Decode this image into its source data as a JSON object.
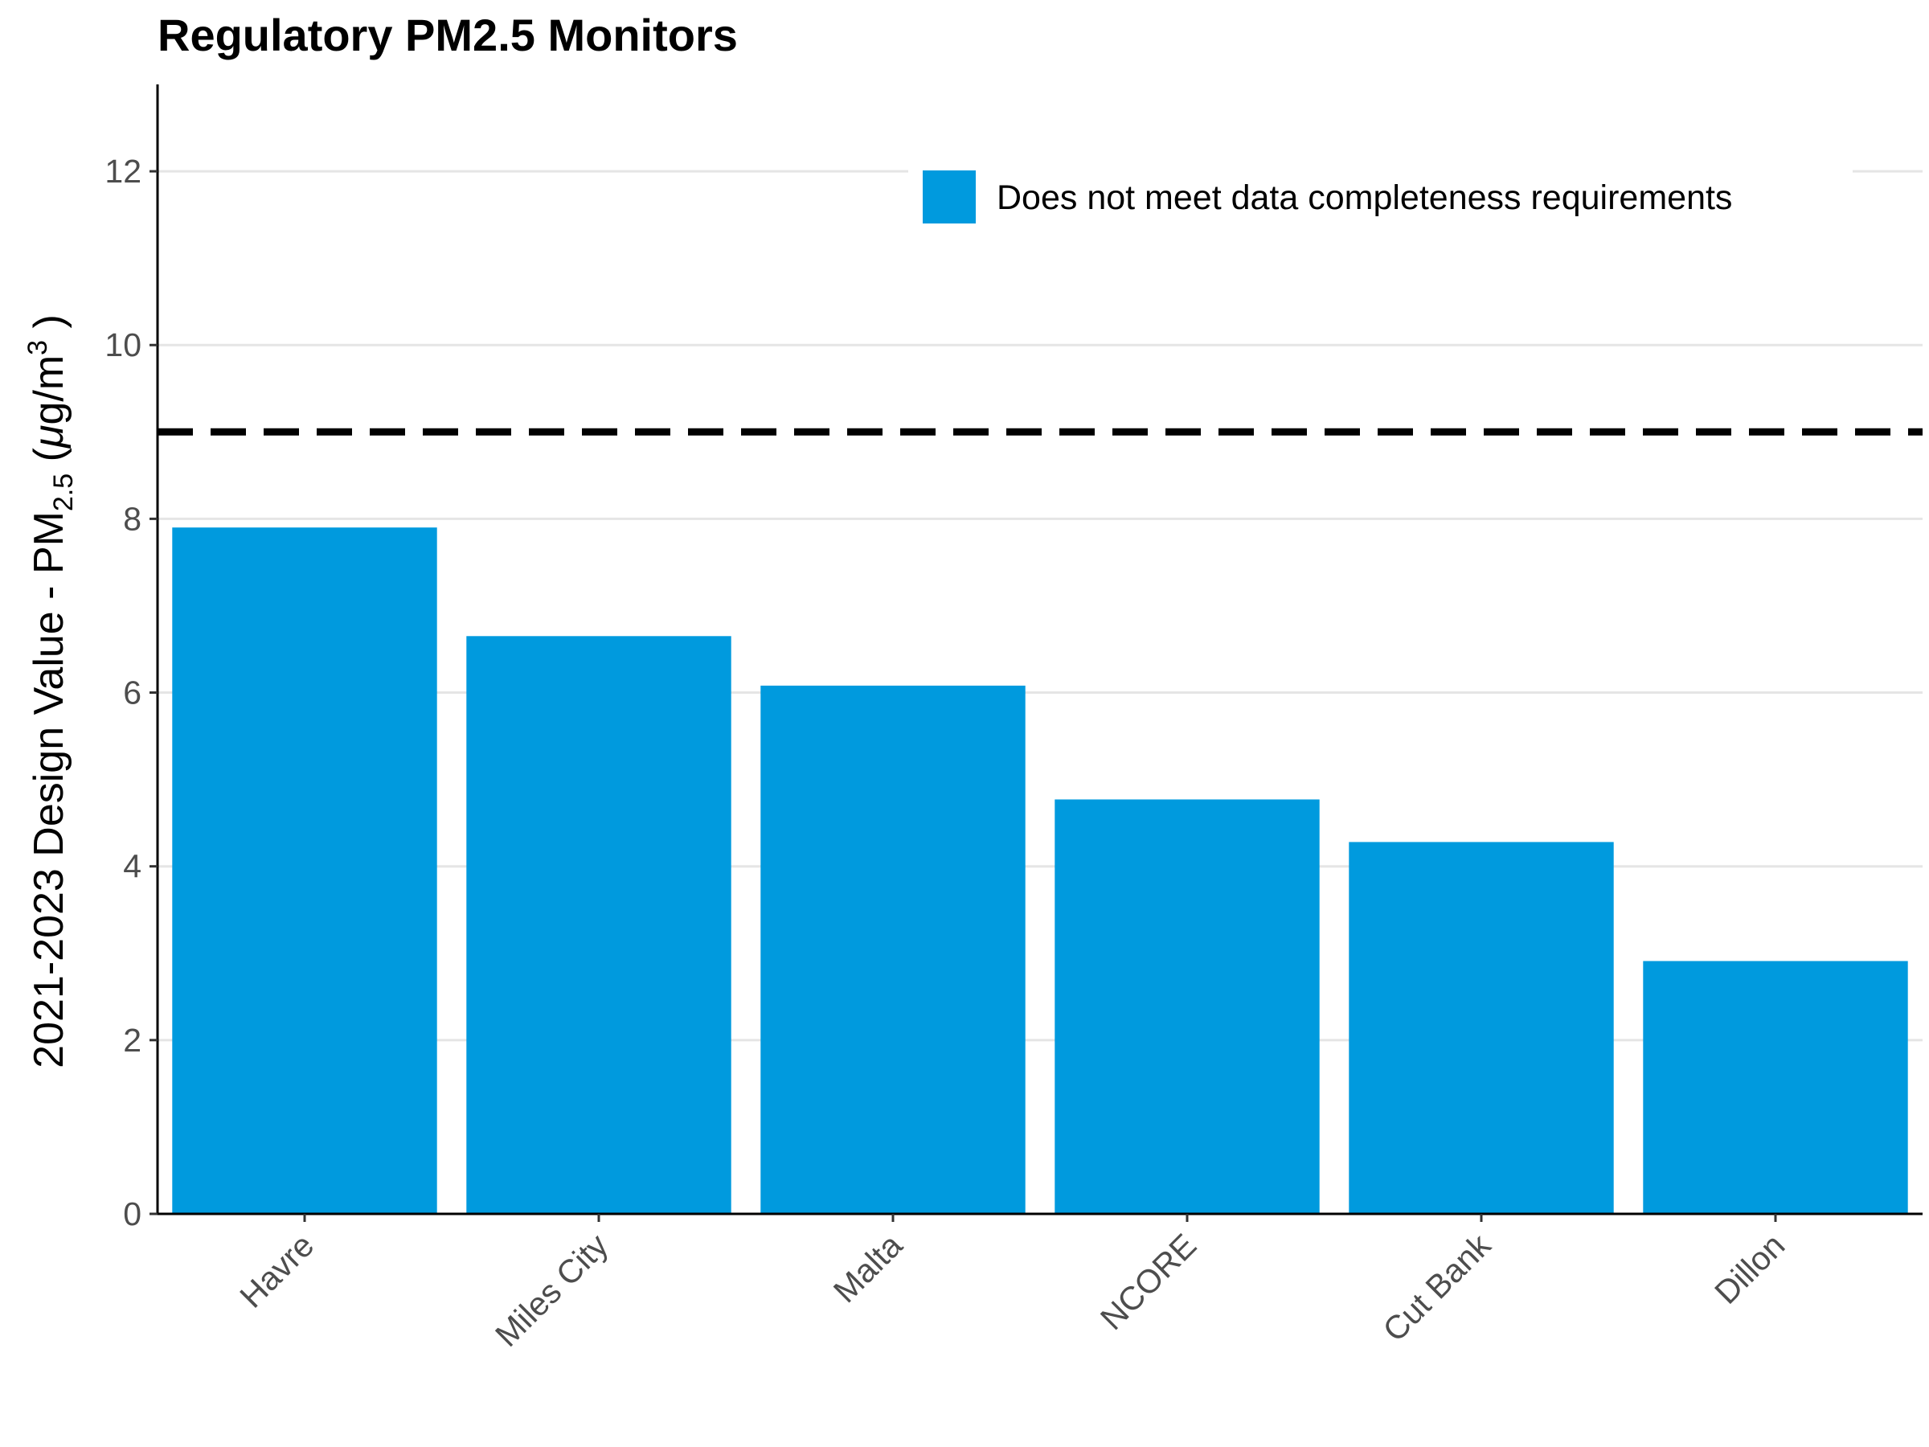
{
  "chart_data": {
    "type": "bar",
    "title": "Regulatory PM2.5 Monitors",
    "ylabel": {
      "prefix": "2021-2023 Design Value - PM",
      "subscript": "2.5",
      "units_open": " (",
      "mu": "μ",
      "units_mid": "g/m",
      "superscript": "3",
      "units_close": " )"
    },
    "categories": [
      "Havre",
      "Miles City",
      "Malta",
      "NCORE",
      "Cut Bank",
      "Dillon"
    ],
    "values": [
      7.9,
      6.65,
      6.08,
      4.77,
      4.28,
      2.91
    ],
    "ylim": [
      0,
      13
    ],
    "yticks": [
      0,
      2,
      4,
      6,
      8,
      10,
      12
    ],
    "grid": true,
    "reference_line": {
      "value": 9,
      "style": "dashed",
      "color": "#000000"
    },
    "legend": {
      "placement": "top-right",
      "entries": [
        {
          "label": "Does not meet data completeness requirements",
          "color": "#009ADE"
        }
      ]
    },
    "bar_color": "#009ADE"
  }
}
